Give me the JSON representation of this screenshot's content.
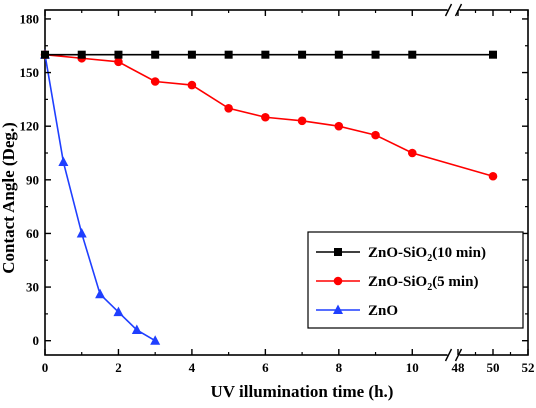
{
  "chart_data": {
    "type": "line",
    "title": "",
    "xlabel": "UV illumination time (h.)",
    "ylabel": "Contact Angle (Deg.)",
    "xlim": [
      0,
      52
    ],
    "ylim": [
      -8,
      185
    ],
    "x_axis_break": {
      "from": 11,
      "to": 48
    },
    "xticks": [
      "0",
      "2",
      "4",
      "6",
      "8",
      "10",
      "48",
      "50",
      "52"
    ],
    "xtick_values": [
      0,
      2,
      4,
      6,
      8,
      10,
      48,
      50,
      52
    ],
    "yticks": [
      "0",
      "30",
      "60",
      "90",
      "120",
      "150",
      "180"
    ],
    "ytick_values": [
      0,
      30,
      60,
      90,
      120,
      150,
      180
    ],
    "grid": false,
    "legend_position": "bottom-right",
    "series": [
      {
        "name": "ZnO-SiO2(10 min)",
        "name_main": "ZnO-SiO",
        "name_sub": "2",
        "name_tail": "(10 min)",
        "color": "#000000",
        "marker": "square",
        "x": [
          0,
          1,
          2,
          3,
          4,
          5,
          6,
          7,
          8,
          9,
          10,
          50
        ],
        "y": [
          160,
          160,
          160,
          160,
          160,
          160,
          160,
          160,
          160,
          160,
          160,
          160
        ]
      },
      {
        "name": "ZnO-SiO2(5 min)",
        "name_main": "ZnO-SiO",
        "name_sub": "2",
        "name_tail": "(5 min)",
        "color": "#ff0000",
        "marker": "circle",
        "x": [
          0,
          1,
          2,
          3,
          4,
          5,
          6,
          7,
          8,
          9,
          10,
          50
        ],
        "y": [
          160,
          158,
          156,
          145,
          143,
          130,
          125,
          123,
          120,
          115,
          105,
          92
        ]
      },
      {
        "name": "ZnO",
        "name_main": "ZnO",
        "name_sub": "",
        "name_tail": "",
        "color": "#1f3fff",
        "marker": "triangle",
        "x": [
          0,
          0.5,
          1,
          1.5,
          2,
          2.5,
          3
        ],
        "y": [
          160,
          100,
          60,
          26,
          16,
          6,
          0
        ]
      }
    ]
  }
}
